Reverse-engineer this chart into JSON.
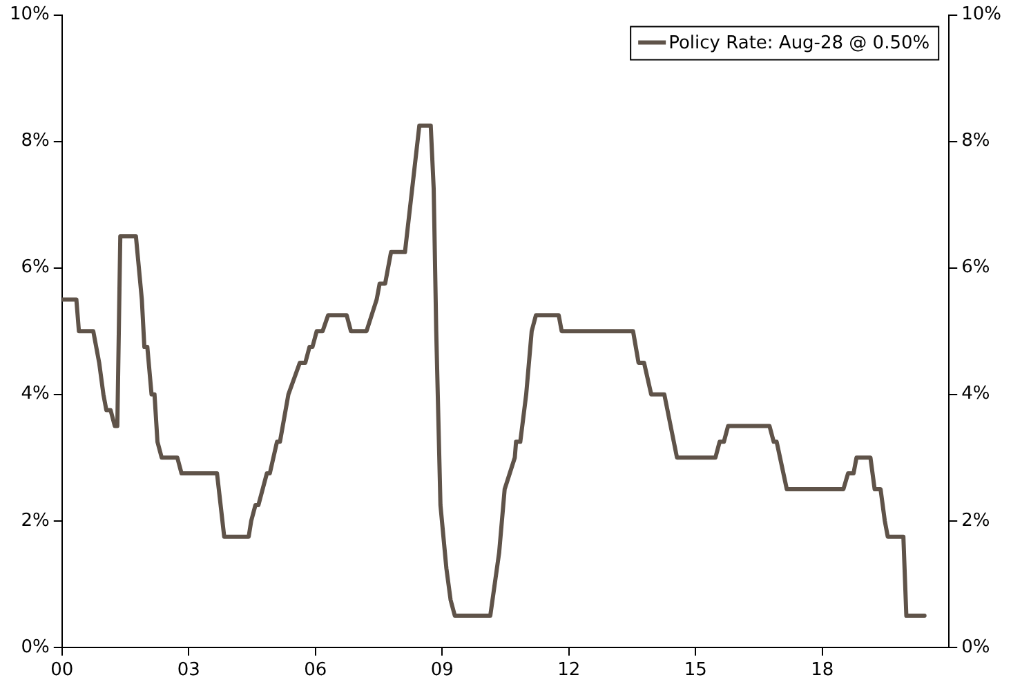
{
  "chart_data": {
    "type": "line",
    "x": [
      0,
      0.34,
      0.4,
      0.74,
      0.88,
      0.98,
      1.05,
      1.15,
      1.25,
      1.31,
      1.38,
      1.75,
      1.89,
      1.95,
      2.02,
      2.12,
      2.19,
      2.26,
      2.36,
      2.73,
      2.83,
      3.67,
      3.84,
      4.42,
      4.48,
      4.58,
      4.65,
      4.75,
      4.85,
      4.92,
      5.09,
      5.16,
      5.36,
      5.63,
      5.76,
      5.86,
      5.93,
      6.03,
      6.17,
      6.3,
      6.74,
      6.84,
      7.21,
      7.45,
      7.52,
      7.65,
      7.79,
      8.12,
      8.46,
      8.73,
      8.8,
      8.86,
      8.96,
      9.1,
      9.2,
      9.3,
      10.14,
      10.35,
      10.48,
      10.72,
      10.75,
      10.85,
      10.99,
      11.12,
      11.22,
      11.76,
      11.83,
      13.52,
      13.65,
      13.78,
      13.95,
      14.26,
      14.56,
      15.47,
      15.57,
      15.67,
      15.77,
      16.75,
      16.85,
      16.92,
      17.16,
      18.5,
      18.61,
      18.74,
      18.81,
      19.14,
      19.24,
      19.38,
      19.48,
      19.55,
      19.92,
      19.99,
      20.42
    ],
    "series": [
      {
        "name": "Policy Rate: Aug-28 @ 0.50%",
        "color": "#5f5349",
        "values": [
          5.5,
          5.5,
          5.0,
          5.0,
          4.5,
          4.0,
          3.75,
          3.75,
          3.5,
          3.5,
          6.5,
          6.5,
          5.5,
          4.75,
          4.75,
          4.0,
          4.0,
          3.25,
          3.0,
          3.0,
          2.75,
          2.75,
          1.75,
          1.75,
          2.0,
          2.25,
          2.25,
          2.5,
          2.75,
          2.75,
          3.25,
          3.25,
          4.0,
          4.5,
          4.5,
          4.75,
          4.75,
          5.0,
          5.0,
          5.25,
          5.25,
          5.0,
          5.0,
          5.5,
          5.75,
          5.75,
          6.25,
          6.25,
          8.25,
          8.25,
          7.25,
          5.0,
          2.25,
          1.25,
          0.75,
          0.5,
          0.5,
          1.5,
          2.5,
          3.0,
          3.25,
          3.25,
          4.0,
          5.0,
          5.25,
          5.25,
          5.0,
          5.0,
          4.5,
          4.5,
          4.0,
          4.0,
          3.0,
          3.0,
          3.25,
          3.25,
          3.5,
          3.5,
          3.25,
          3.25,
          2.5,
          2.5,
          2.75,
          2.75,
          3.0,
          3.0,
          2.5,
          2.5,
          2.0,
          1.75,
          1.75,
          0.5,
          0.5
        ]
      }
    ],
    "xlim": [
      0,
      21
    ],
    "xticks": [
      {
        "value": 0,
        "label": "00"
      },
      {
        "value": 3,
        "label": "03"
      },
      {
        "value": 6,
        "label": "06"
      },
      {
        "value": 9,
        "label": "09"
      },
      {
        "value": 12,
        "label": "12"
      },
      {
        "value": 15,
        "label": "15"
      },
      {
        "value": 18,
        "label": "18"
      }
    ],
    "ylim": [
      0,
      10
    ],
    "yticks": [
      {
        "value": 0,
        "label": "0%"
      },
      {
        "value": 2,
        "label": "2%"
      },
      {
        "value": 4,
        "label": "4%"
      },
      {
        "value": 6,
        "label": "6%"
      },
      {
        "value": 8,
        "label": "8%"
      },
      {
        "value": 10,
        "label": "10%"
      }
    ],
    "y2lim": [
      0,
      10
    ],
    "y2ticks": [
      {
        "value": 0,
        "label": "0%"
      },
      {
        "value": 2,
        "label": "2%"
      },
      {
        "value": 4,
        "label": "4%"
      },
      {
        "value": 6,
        "label": "6%"
      },
      {
        "value": 8,
        "label": "8%"
      },
      {
        "value": 10,
        "label": "10%"
      }
    ],
    "grid": false,
    "legend": "top right",
    "marker": "none",
    "line_style": "solid"
  }
}
